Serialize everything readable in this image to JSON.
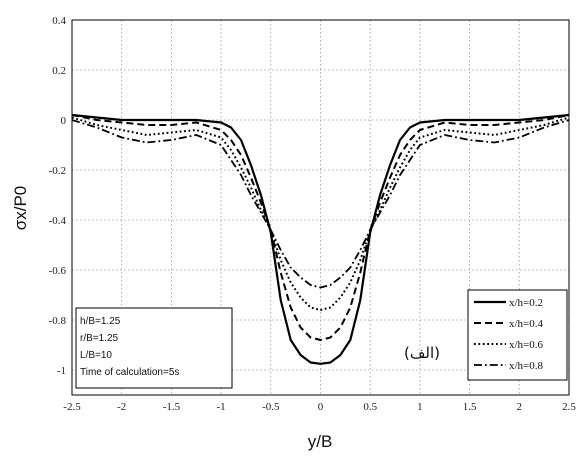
{
  "chart_data": {
    "type": "line",
    "title": "",
    "xlabel": "y/B",
    "ylabel": "σx/P0",
    "xlim": [
      -2.5,
      2.5
    ],
    "ylim": [
      -1.1,
      0.4
    ],
    "xticks": [
      -2.5,
      -2,
      -1.5,
      -1,
      -0.5,
      0,
      0.5,
      1,
      1.5,
      2,
      2.5
    ],
    "yticks": [
      0.4,
      0.2,
      0,
      -0.2,
      -0.4,
      -0.6,
      -0.8,
      -1
    ],
    "xtick_labels": [
      "-2.5",
      "-2",
      "-1.5",
      "-1",
      "-0.5",
      "0",
      "0.5",
      "1",
      "1.5",
      "2",
      "2.5"
    ],
    "ytick_labels": [
      "0.4",
      "0.2",
      "0",
      "-0.2",
      "-0.4",
      "-0.6",
      "-0.8",
      "-1"
    ],
    "grid": true,
    "legend_position": "bottom-right",
    "x": [
      -2.5,
      -2.25,
      -2.0,
      -1.75,
      -1.5,
      -1.25,
      -1.0,
      -0.9,
      -0.8,
      -0.7,
      -0.6,
      -0.5,
      -0.4,
      -0.3,
      -0.2,
      -0.1,
      0,
      0.1,
      0.2,
      0.3,
      0.4,
      0.5,
      0.6,
      0.7,
      0.8,
      0.9,
      1.0,
      1.25,
      1.5,
      1.75,
      2.0,
      2.25,
      2.5
    ],
    "series": [
      {
        "name": "x/h=0.2",
        "style": "solid",
        "values": [
          0.02,
          0.01,
          0.0,
          0.0,
          0.0,
          0.0,
          -0.01,
          -0.03,
          -0.08,
          -0.18,
          -0.3,
          -0.45,
          -0.72,
          -0.88,
          -0.94,
          -0.97,
          -0.975,
          -0.97,
          -0.94,
          -0.88,
          -0.72,
          -0.45,
          -0.3,
          -0.18,
          -0.08,
          -0.03,
          -0.01,
          0.0,
          0.0,
          0.0,
          0.0,
          0.01,
          0.02
        ]
      },
      {
        "name": "x/h=0.4",
        "style": "dashed",
        "values": [
          0.02,
          0.0,
          -0.01,
          -0.02,
          -0.02,
          -0.01,
          -0.04,
          -0.08,
          -0.14,
          -0.23,
          -0.33,
          -0.44,
          -0.61,
          -0.75,
          -0.83,
          -0.87,
          -0.88,
          -0.87,
          -0.83,
          -0.75,
          -0.61,
          -0.44,
          -0.33,
          -0.23,
          -0.14,
          -0.08,
          -0.04,
          -0.01,
          -0.02,
          -0.02,
          -0.01,
          0.0,
          0.02
        ]
      },
      {
        "name": "x/h=0.6",
        "style": "dotted",
        "values": [
          0.01,
          -0.02,
          -0.04,
          -0.06,
          -0.05,
          -0.04,
          -0.07,
          -0.12,
          -0.19,
          -0.27,
          -0.36,
          -0.44,
          -0.56,
          -0.65,
          -0.71,
          -0.75,
          -0.76,
          -0.75,
          -0.71,
          -0.65,
          -0.56,
          -0.44,
          -0.36,
          -0.27,
          -0.19,
          -0.12,
          -0.07,
          -0.04,
          -0.05,
          -0.06,
          -0.04,
          -0.02,
          0.01
        ]
      },
      {
        "name": "x/h=0.8",
        "style": "dashdot",
        "values": [
          0.0,
          -0.03,
          -0.07,
          -0.09,
          -0.08,
          -0.06,
          -0.1,
          -0.16,
          -0.22,
          -0.3,
          -0.37,
          -0.44,
          -0.52,
          -0.59,
          -0.63,
          -0.66,
          -0.67,
          -0.66,
          -0.63,
          -0.59,
          -0.52,
          -0.44,
          -0.37,
          -0.3,
          -0.22,
          -0.16,
          -0.1,
          -0.06,
          -0.08,
          -0.09,
          -0.07,
          -0.03,
          0.0
        ]
      }
    ],
    "annotation_box": [
      "h/B=1.25",
      "r/B=1.25",
      "L/B=10",
      "Time of calculation=5s"
    ],
    "panel_label": "(الف)"
  }
}
